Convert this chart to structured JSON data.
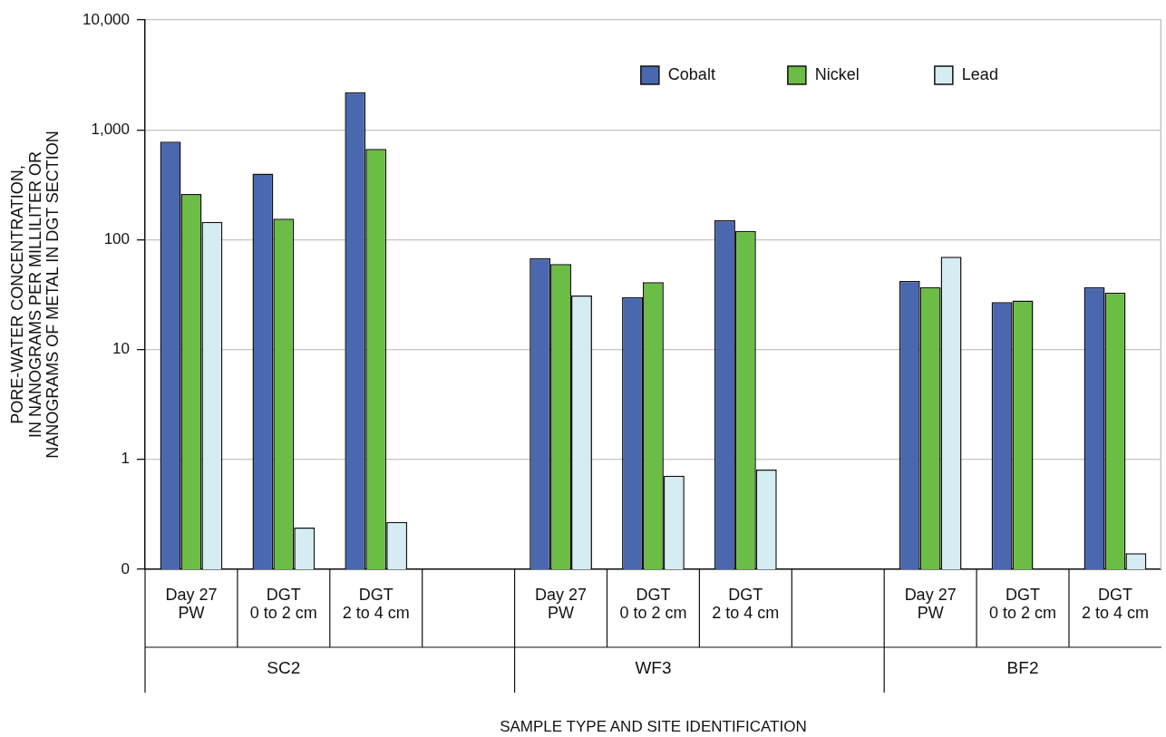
{
  "chart_data": {
    "type": "bar",
    "ylabel": "PORE-WATER CONCENTRATION,\nIN NANOGRAMS PER MILLILITER OR\nNANOGRAMS OF METAL IN DGT SECTION",
    "categories": [
      "Day 27\nPW",
      "DGT\n0 to 2 cm",
      "DGT\n2 to 4 cm",
      null,
      "Day 27\nPW",
      "DGT\n0 to 2 cm",
      "DGT\n2 to 4 cm",
      null,
      "Day 27\nPW",
      "DGT\n0 to 2 cm",
      "DGT\n2 to 4 cm"
    ],
    "annotations": [
      "SC2",
      "WF3",
      "BF2",
      "SAMPLE TYPE AND SITE IDENTIFICATION"
    ],
    "series": [
      {
        "name": "Cobalt",
        "color": "#4a68b0",
        "values": [
          780,
          400,
          2200,
          null,
          68,
          30,
          150,
          null,
          42,
          27,
          37
        ]
      },
      {
        "name": "Nickel",
        "color": "#6bbd45",
        "values": [
          260,
          155,
          670,
          null,
          60,
          41,
          120,
          null,
          37,
          28,
          33
        ]
      },
      {
        "name": "Lead",
        "color": "#d4ecf2",
        "values": [
          145,
          0.24,
          0.27,
          null,
          31,
          0.71,
          0.81,
          null,
          70,
          null,
          0.14
        ]
      }
    ],
    "log": true,
    "ylim": [
      0.1,
      10000
    ],
    "yticks": [
      {
        "value": 0.1,
        "label": "0"
      },
      1,
      10,
      100,
      {
        "value": 1000,
        "label": "1,000"
      },
      {
        "value": 10000,
        "label": "10,000"
      }
    ],
    "grid": "y",
    "legend": "top right"
  }
}
